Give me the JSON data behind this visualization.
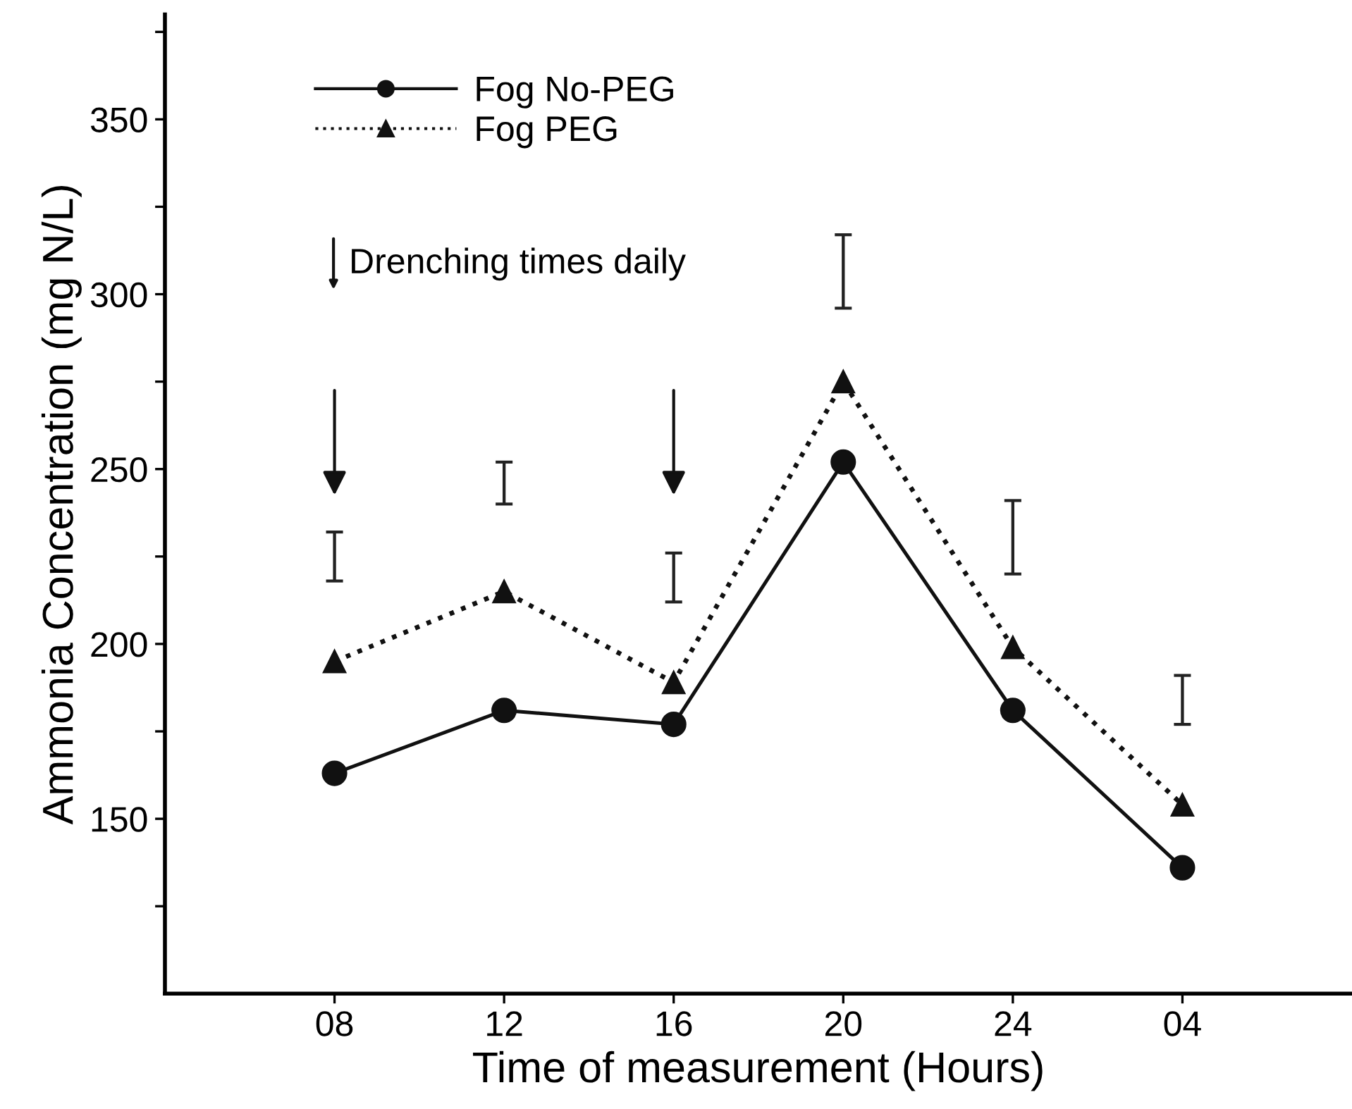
{
  "chart_data": {
    "type": "line",
    "xlabel": "Time of measurement (Hours)",
    "ylabel": "Ammonia Concentration (mg N/L)",
    "categories": [
      "08",
      "12",
      "16",
      "20",
      "24",
      "04"
    ],
    "series": [
      {
        "name": "Fog No-PEG",
        "color": "#111111",
        "marker": "circle",
        "line_style": "solid",
        "values": [
          163,
          181,
          177,
          252,
          181,
          136
        ]
      },
      {
        "name": "Fog PEG",
        "color": "#111111",
        "marker": "triangle",
        "line_style": "dotted",
        "values": [
          195,
          215,
          189,
          275,
          199,
          154
        ]
      },
      {
        "type": "bar",
        "color": "#222222",
        "base": [
          218,
          240,
          212,
          296,
          220,
          177
        ],
        "values": [
          14,
          12,
          14,
          21,
          21,
          14
        ]
      }
    ],
    "ylim": [
      100,
      380
    ],
    "yticks": [
      {
        "value": 125,
        "label": null
      },
      150,
      {
        "value": 175,
        "label": null
      },
      200,
      {
        "value": 225,
        "label": null
      },
      250,
      {
        "value": 275,
        "label": null
      },
      300,
      {
        "value": 325,
        "label": null
      },
      350,
      {
        "value": 375,
        "label": null
      }
    ],
    "annotations": [
      "Drenching times daily"
    ],
    "legend": "top left",
    "grid": false
  }
}
